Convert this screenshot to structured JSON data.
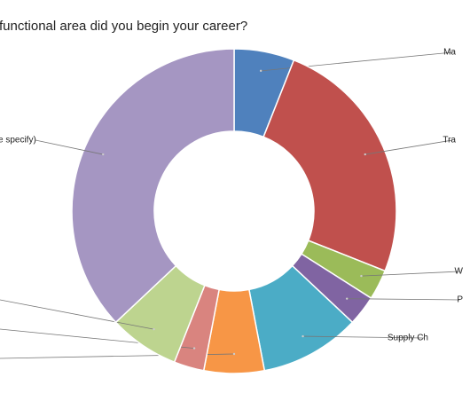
{
  "chart_data": {
    "type": "donut",
    "title": "functional area did you begin your career?",
    "categories": [
      "Ma",
      "Tra",
      "W",
      "P",
      "Supply Ch",
      null,
      null,
      null,
      "e specify)"
    ],
    "values": [
      6,
      25,
      3,
      3,
      10,
      6,
      3,
      7,
      37
    ],
    "colors": [
      "#4f81bd",
      "#c0504d",
      "#9bbb59",
      "#8064a2",
      "#4bacc6",
      "#f79646",
      "#d9847f",
      "#bdd48f",
      "#a596c2"
    ]
  }
}
